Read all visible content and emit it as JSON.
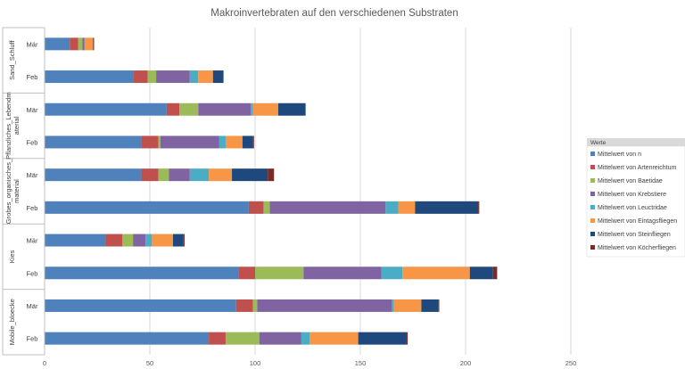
{
  "chart_data": {
    "type": "bar",
    "orientation": "horizontal",
    "stacked": true,
    "title": "Makroinvertebraten auf den verschiedenen Substraten",
    "xlim": [
      0,
      250
    ],
    "x_ticks": [
      0,
      50,
      100,
      150,
      200,
      250
    ],
    "grid": true,
    "legend_title": "Werte",
    "legend_position": "right",
    "groups": [
      {
        "name": "Sand_Schluff",
        "categories": [
          "Mär",
          "Feb"
        ]
      },
      {
        "name": "Pflanzliches_Lebendmaterial",
        "label_lines": [
          "Pflanzliches_Lebendm",
          "aterial"
        ],
        "categories": [
          "Mär",
          "Feb"
        ]
      },
      {
        "name": "Grobes_organisches_Material",
        "label_lines": [
          "Grobes_organisches_",
          "material"
        ],
        "categories": [
          "Mär",
          "Feb"
        ]
      },
      {
        "name": "Kies",
        "categories": [
          "Mär",
          "Feb"
        ]
      },
      {
        "name": "Mobile_bloecke",
        "categories": [
          "Mär",
          "Feb"
        ]
      }
    ],
    "series": [
      {
        "name": "Mittelwert von n",
        "color": "#4f81bd",
        "values": [
          12,
          42,
          58,
          46,
          46,
          97,
          29,
          92,
          91,
          78
        ]
      },
      {
        "name": "Mittelwert von Artenreichtum",
        "color": "#c0504d",
        "values": [
          4,
          7,
          6,
          8,
          8,
          7,
          8,
          8,
          8,
          8
        ]
      },
      {
        "name": "Mittelwert von Baetidae",
        "color": "#9bbb59",
        "values": [
          2,
          4,
          9,
          1,
          5,
          3,
          5,
          23,
          2,
          16
        ]
      },
      {
        "name": "Mittelwert von Krebstiere",
        "color": "#8064a2",
        "values": [
          1,
          16,
          25,
          28,
          10,
          55,
          6,
          37,
          64,
          20
        ]
      },
      {
        "name": "Mittelwert von Leuctridae",
        "color": "#4bacc6",
        "values": [
          0,
          4,
          1,
          3,
          9,
          6,
          3,
          10,
          1,
          4
        ]
      },
      {
        "name": "Mittelwert von Eintagsfliegen",
        "color": "#f79646",
        "values": [
          4,
          7,
          12,
          8,
          11,
          8,
          10,
          32,
          13,
          23
        ]
      },
      {
        "name": "Mittelwert von Steinfliegen",
        "color": "#1f497d",
        "values": [
          0,
          5,
          13,
          5,
          17,
          30,
          5,
          11,
          8,
          23
        ]
      },
      {
        "name": "Mittelwert von Köcherfliegen",
        "color": "#772c2a",
        "values": [
          0.5,
          0,
          0,
          0.5,
          3,
          0.5,
          0.5,
          2,
          0.5,
          0.5
        ]
      }
    ]
  }
}
